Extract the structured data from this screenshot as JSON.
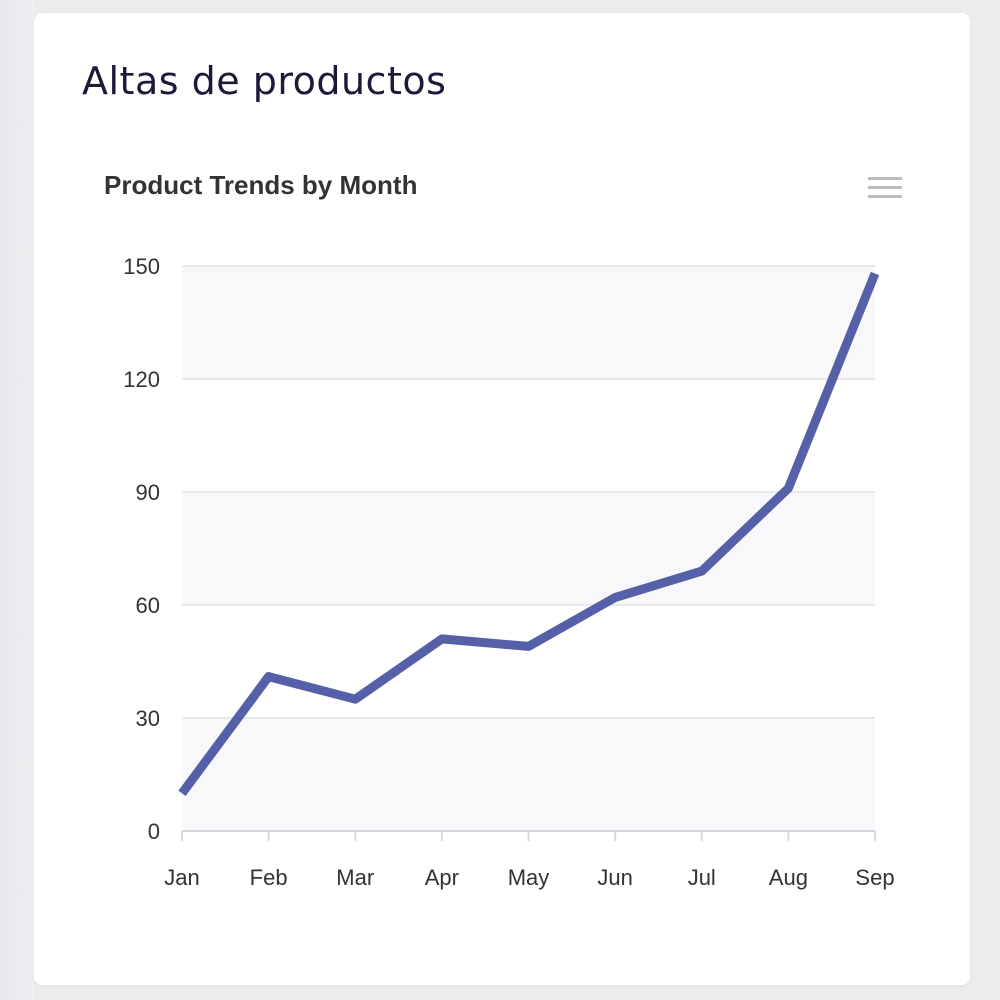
{
  "card": {
    "title": "Altas de productos"
  },
  "menu_icon": "hamburger-menu-icon",
  "colors": {
    "series": "#5660a8",
    "grid": "#e2e2e6",
    "plot_band": "#f8f8fa",
    "text": "#333333"
  },
  "chart_data": {
    "type": "line",
    "title": "Product Trends by Month",
    "categories": [
      "Jan",
      "Feb",
      "Mar",
      "Apr",
      "May",
      "Jun",
      "Jul",
      "Aug",
      "Sep"
    ],
    "series": [
      {
        "values": [
          10,
          41,
          35,
          51,
          49,
          62,
          69,
          91,
          148
        ]
      }
    ],
    "yticks": [
      0,
      30,
      60,
      90,
      120,
      150
    ],
    "ylim": [
      0,
      150
    ],
    "xlabel": "",
    "ylabel": "",
    "grid": true,
    "legend": "none"
  }
}
